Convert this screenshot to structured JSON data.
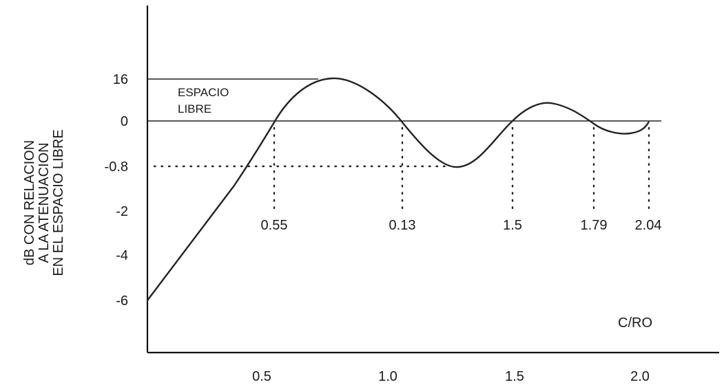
{
  "chart_data": {
    "type": "line",
    "title": "",
    "xlabel": "C/RO",
    "ylabel_lines": [
      "dB CON RELACION",
      "A LA ATENUACION",
      "EN EL ESPACIO LIBRE"
    ],
    "x_ticks": [
      {
        "value": 0.5,
        "label": "0.5"
      },
      {
        "value": 1.0,
        "label": "1.0"
      },
      {
        "value": 1.5,
        "label": "1.5"
      },
      {
        "value": 2.0,
        "label": "2.0"
      }
    ],
    "y_ticks": [
      {
        "label": "16"
      },
      {
        "label": "0"
      },
      {
        "label": "-0.8"
      },
      {
        "label": "-2"
      },
      {
        "label": "-4"
      },
      {
        "label": "-6"
      }
    ],
    "curve": {
      "x": [
        0.0,
        0.2,
        0.4,
        0.55,
        0.65,
        0.75,
        0.8,
        0.9,
        1.0,
        1.07,
        1.15,
        1.25,
        1.3,
        1.38,
        1.5,
        1.58,
        1.66,
        1.73,
        1.79,
        1.86,
        1.96,
        2.04
      ],
      "y": [
        "-6",
        "-4",
        "-2",
        "0",
        "16",
        "16",
        "16",
        "16",
        "0",
        "0",
        "-0.8",
        "-0.8",
        "-0.8",
        "-0.8",
        "0",
        "0",
        "0",
        "0",
        "0",
        "-0.8",
        "-0.8",
        "0"
      ]
    },
    "free_space_label_lines": [
      "ESPACIO",
      "LIBRE"
    ],
    "zero_crossings": [
      {
        "label": "0.55"
      },
      {
        "label": "0.13"
      },
      {
        "label": "1.5"
      },
      {
        "label": "1.79"
      },
      {
        "label": "2.04"
      }
    ],
    "grid": false,
    "legend": "none"
  }
}
